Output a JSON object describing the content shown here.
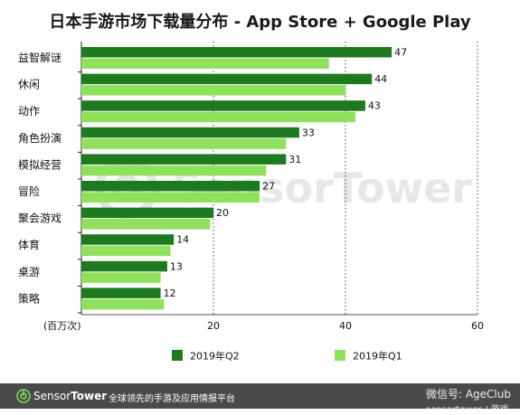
{
  "chart_data": {
    "type": "bar",
    "orientation": "horizontal",
    "title": "日本手游市场下载量分布 - App Store + Google Play",
    "xlabel": "(百万次)",
    "xlim": [
      0,
      60
    ],
    "xticks": [
      20,
      40,
      60
    ],
    "categories": [
      "益智解谜",
      "休闲",
      "动作",
      "角色扮演",
      "模拟经营",
      "冒险",
      "聚会游戏",
      "体育",
      "桌游",
      "策略"
    ],
    "series": [
      {
        "name": "2019年Q2",
        "color": "#1e7a1e",
        "values": [
          47,
          44,
          43,
          33,
          31,
          27,
          20,
          14,
          13,
          12
        ],
        "labels": [
          "47",
          "44",
          "43",
          "33",
          "31",
          "27",
          "20",
          "14",
          "13",
          "12"
        ]
      },
      {
        "name": "2019年Q1",
        "color": "#8fe05c",
        "values": [
          37.5,
          40,
          41.5,
          31,
          28,
          27,
          19.5,
          13.5,
          12,
          12.5
        ]
      }
    ],
    "grid": "vertical dotted"
  },
  "watermark": {
    "text": "SensorTower"
  },
  "footer": {
    "brand_prefix": "Sensor",
    "brand_suffix": "Tower",
    "tagline": "全球领先的手游及应用情报平台",
    "wechat": "微信号: AgeClub",
    "wechat_sub": "sensortower / 游戏"
  },
  "colors": {
    "q2": "#1e7a1e",
    "q1": "#8fe05c",
    "footer_bg": "#4a4a4a"
  }
}
